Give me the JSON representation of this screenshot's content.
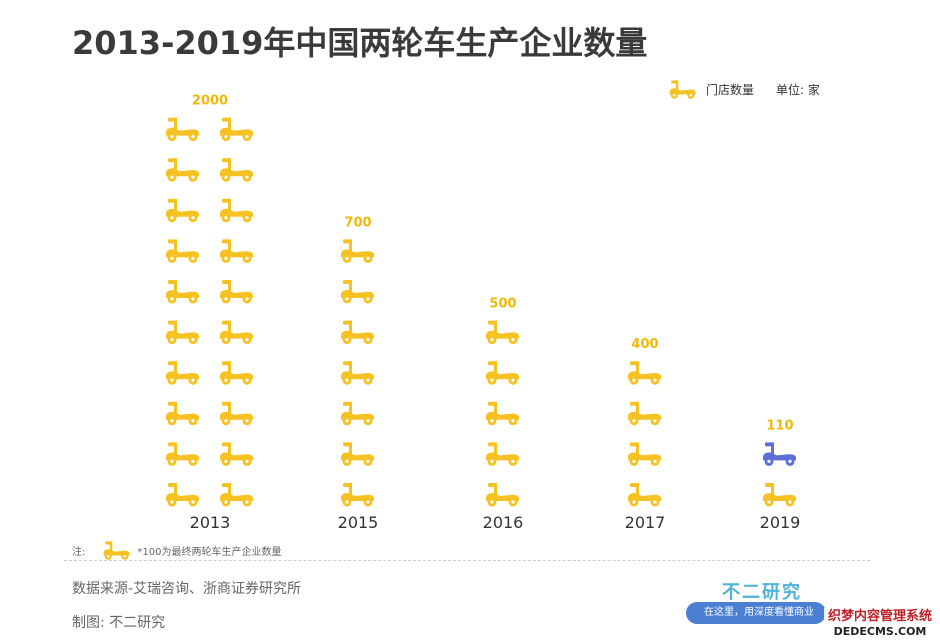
{
  "title": "2013-2019年中国两轮车生产企业数量",
  "legend": {
    "label": "门店数量",
    "unit": "单位: 家"
  },
  "chart_data": {
    "type": "pictogram-bar",
    "title": "2013-2019年中国两轮车生产企业数量",
    "unit": "单位: 家",
    "icon": "scooter-icon",
    "icon_value": 100,
    "categories": [
      "2013",
      "2015",
      "2016",
      "2017",
      "2019"
    ],
    "values": [
      2000,
      700,
      500,
      400,
      110
    ],
    "value_labels": [
      "2000",
      "700",
      "500",
      "400",
      "110"
    ],
    "colors": {
      "primary": "#f6c223",
      "highlight": "#5b6fd6"
    }
  },
  "note": {
    "prefix": "注:",
    "text": "*100为最终两轮车生产企业数量"
  },
  "source": "数据来源-艾瑞咨询、浙商证券研究所",
  "maker": "制图: 不二研究",
  "brand": "不二研究",
  "tagline": "在这里，用深度看懂商业",
  "watermark": {
    "main": "织梦内容管理系统",
    "sub": "DEDECMS.COM"
  }
}
